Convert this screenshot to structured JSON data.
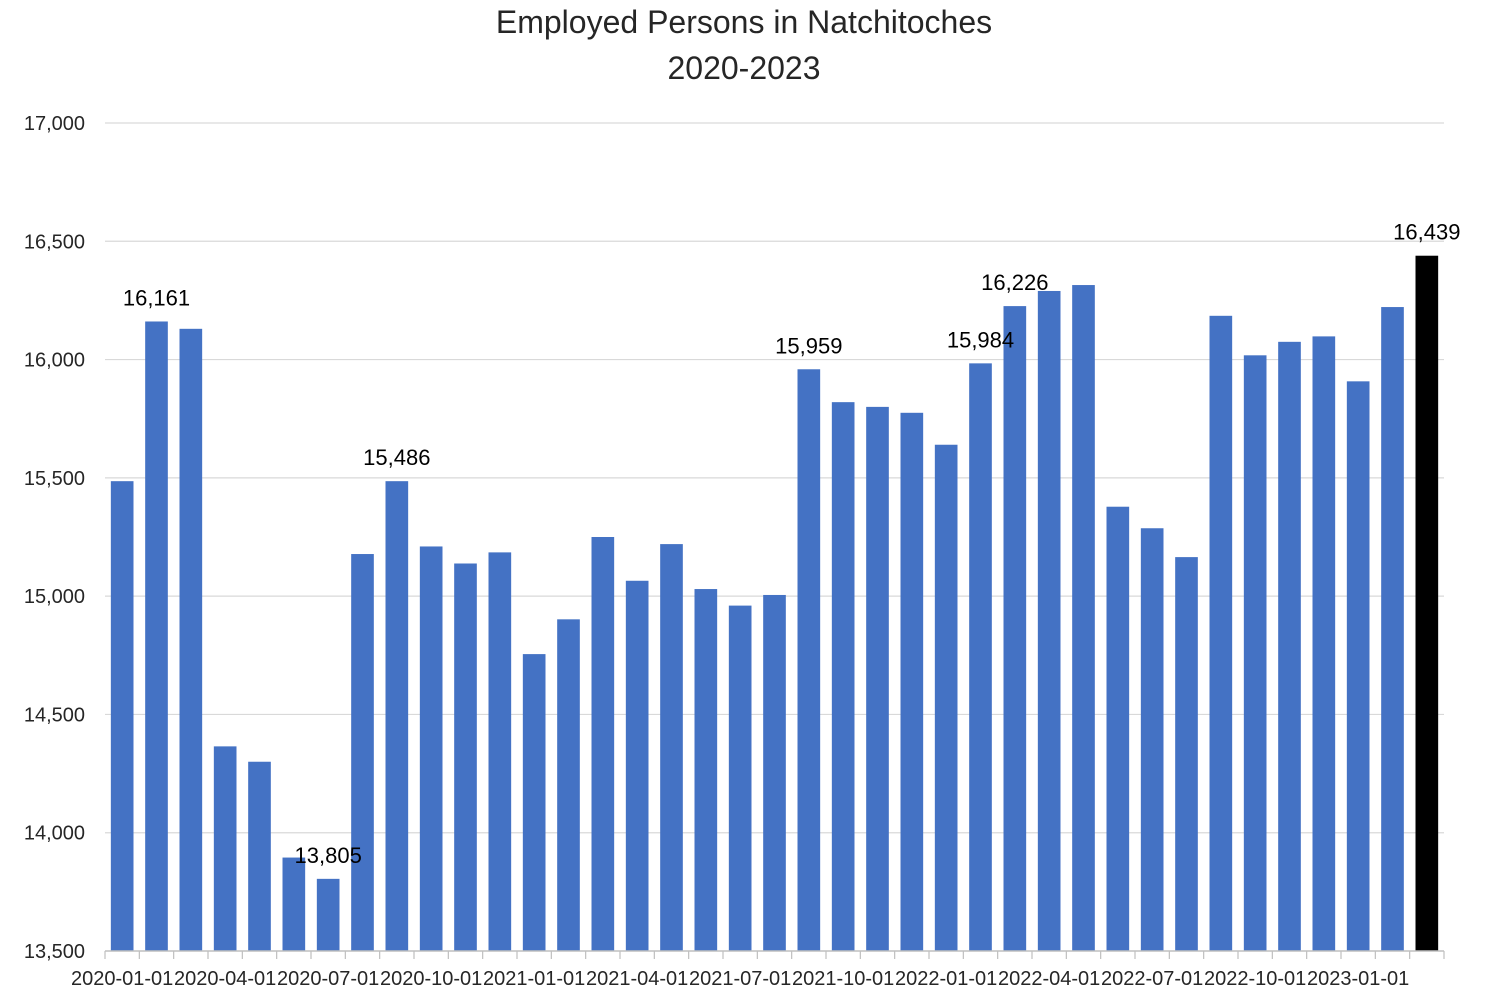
{
  "chart_data": {
    "type": "bar",
    "title": [
      "Employed Persons in Natchitoches",
      "2020-2023"
    ],
    "xlabel": "",
    "ylabel": "",
    "ylim": [
      13500,
      17000
    ],
    "yticks": [
      13500,
      14000,
      14500,
      15000,
      15500,
      16000,
      16500,
      17000
    ],
    "ytick_labels": [
      "13,500",
      "14,000",
      "14,500",
      "15,000",
      "15,500",
      "16,000",
      "16,500",
      "17,000"
    ],
    "grid": true,
    "legend": "none",
    "colors": {
      "bar": "#4472C4",
      "highlight": "#000000",
      "grid": "#d9d9d9",
      "axis": "#bfbfbf",
      "text": "#262626"
    },
    "categories": [
      "2020-01-01",
      "2020-02-01",
      "2020-03-01",
      "2020-04-01",
      "2020-05-01",
      "2020-06-01",
      "2020-07-01",
      "2020-08-01",
      "2020-09-01",
      "2020-10-01",
      "2020-11-01",
      "2020-12-01",
      "2021-01-01",
      "2021-02-01",
      "2021-03-01",
      "2021-04-01",
      "2021-05-01",
      "2021-06-01",
      "2021-07-01",
      "2021-08-01",
      "2021-09-01",
      "2021-10-01",
      "2021-11-01",
      "2021-12-01",
      "2022-01-01",
      "2022-02-01",
      "2022-03-01",
      "2022-04-01",
      "2022-05-01",
      "2022-06-01",
      "2022-07-01",
      "2022-08-01",
      "2022-09-01",
      "2022-10-01",
      "2022-11-01",
      "2022-12-01",
      "2023-01-01",
      "2023-02-01",
      "2023-03-01"
    ],
    "x_tick_labels": [
      "2020-01-01",
      "2020-04-01",
      "2020-07-01",
      "2020-10-01",
      "2021-01-01",
      "2021-04-01",
      "2021-07-01",
      "2021-10-01",
      "2022-01-01",
      "2022-04-01",
      "2022-07-01",
      "2022-10-01",
      "2023-01-01"
    ],
    "values": [
      15486,
      16161,
      16130,
      14365,
      14300,
      13895,
      13805,
      15178,
      15486,
      15210,
      15138,
      15185,
      14755,
      14902,
      15250,
      15065,
      15220,
      15030,
      14960,
      15005,
      15959,
      15820,
      15800,
      15775,
      15640,
      15984,
      16226,
      16290,
      16315,
      15378,
      15287,
      15165,
      16185,
      16018,
      16075,
      16098,
      15908,
      16222,
      16439
    ],
    "highlight_index": 38,
    "data_labels": [
      {
        "index": 1,
        "text": "16,161"
      },
      {
        "index": 6,
        "text": "13,805"
      },
      {
        "index": 8,
        "text": "15,486"
      },
      {
        "index": 20,
        "text": "15,959"
      },
      {
        "index": 25,
        "text": "15,984"
      },
      {
        "index": 26,
        "text": "16,226"
      },
      {
        "index": 38,
        "text": "16,439"
      }
    ]
  }
}
